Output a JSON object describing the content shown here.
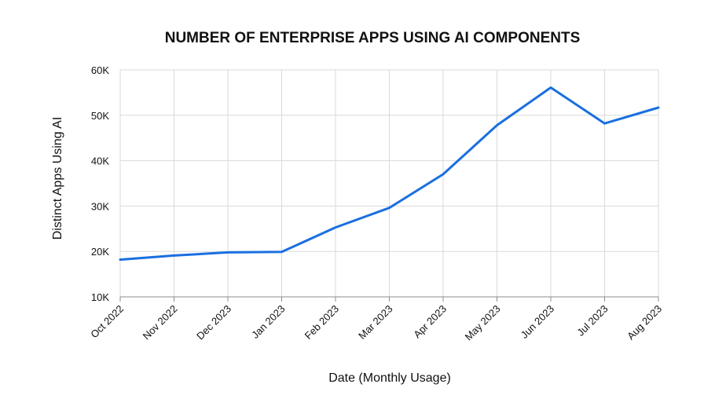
{
  "chart_data": {
    "type": "line",
    "title": "NUMBER OF ENTERPRISE APPS USING AI COMPONENTS",
    "xlabel": "Date (Monthly Usage)",
    "ylabel": "Distinct Apps Using AI",
    "categories": [
      "Oct 2022",
      "Nov 2022",
      "Dec 2023",
      "Jan 2023",
      "Feb 2023",
      "Mar 2023",
      "Apr 2023",
      "May 2023",
      "Jun 2023",
      "Jul 2023",
      "Aug 2023"
    ],
    "y_ticks": [
      "10K",
      "20K",
      "30K",
      "40K",
      "50K",
      "60K"
    ],
    "y_tick_values": [
      10000,
      20000,
      30000,
      40000,
      50000,
      60000
    ],
    "ylim": [
      10000,
      60000
    ],
    "grid": true,
    "legend": "none",
    "series": [
      {
        "values": [
          18200,
          19100,
          19800,
          19900,
          25300,
          29600,
          37000,
          47800,
          56100,
          48200,
          51700
        ],
        "color": "#1a6fe0"
      }
    ]
  }
}
